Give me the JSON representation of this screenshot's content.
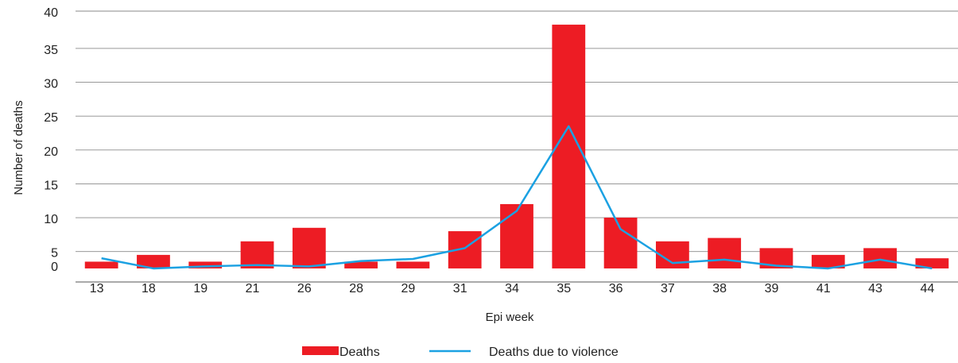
{
  "chart_data": {
    "type": "bar",
    "title": "",
    "xlabel": "Epi week",
    "ylabel": "Number of deaths",
    "categories": [
      "13",
      "18",
      "19",
      "21",
      "26",
      "28",
      "29",
      "31",
      "34",
      "35",
      "36",
      "37",
      "38",
      "39",
      "41",
      "43",
      "44"
    ],
    "series": [
      {
        "name": "Deaths",
        "type": "bar",
        "color": "#ED1C24",
        "values": [
          1,
          2,
          1,
          4,
          6,
          1,
          1,
          5.5,
          9.5,
          36,
          7.5,
          4,
          4.5,
          3,
          2,
          3,
          1.5
        ]
      },
      {
        "name": "Deaths due to violence",
        "type": "line",
        "color": "#1BA1E2",
        "values": [
          1.5,
          0,
          0.3,
          0.5,
          0.3,
          1.1,
          1.4,
          3,
          8.5,
          21,
          5.8,
          0.8,
          1.3,
          0.4,
          0,
          1.3,
          0
        ]
      }
    ],
    "y_ticks": [
      "0",
      "5",
      "10",
      "15",
      "20",
      "25",
      "30",
      "35",
      "40"
    ],
    "ylim": [
      -2,
      38
    ],
    "grid": true,
    "legend_position": "bottom"
  }
}
